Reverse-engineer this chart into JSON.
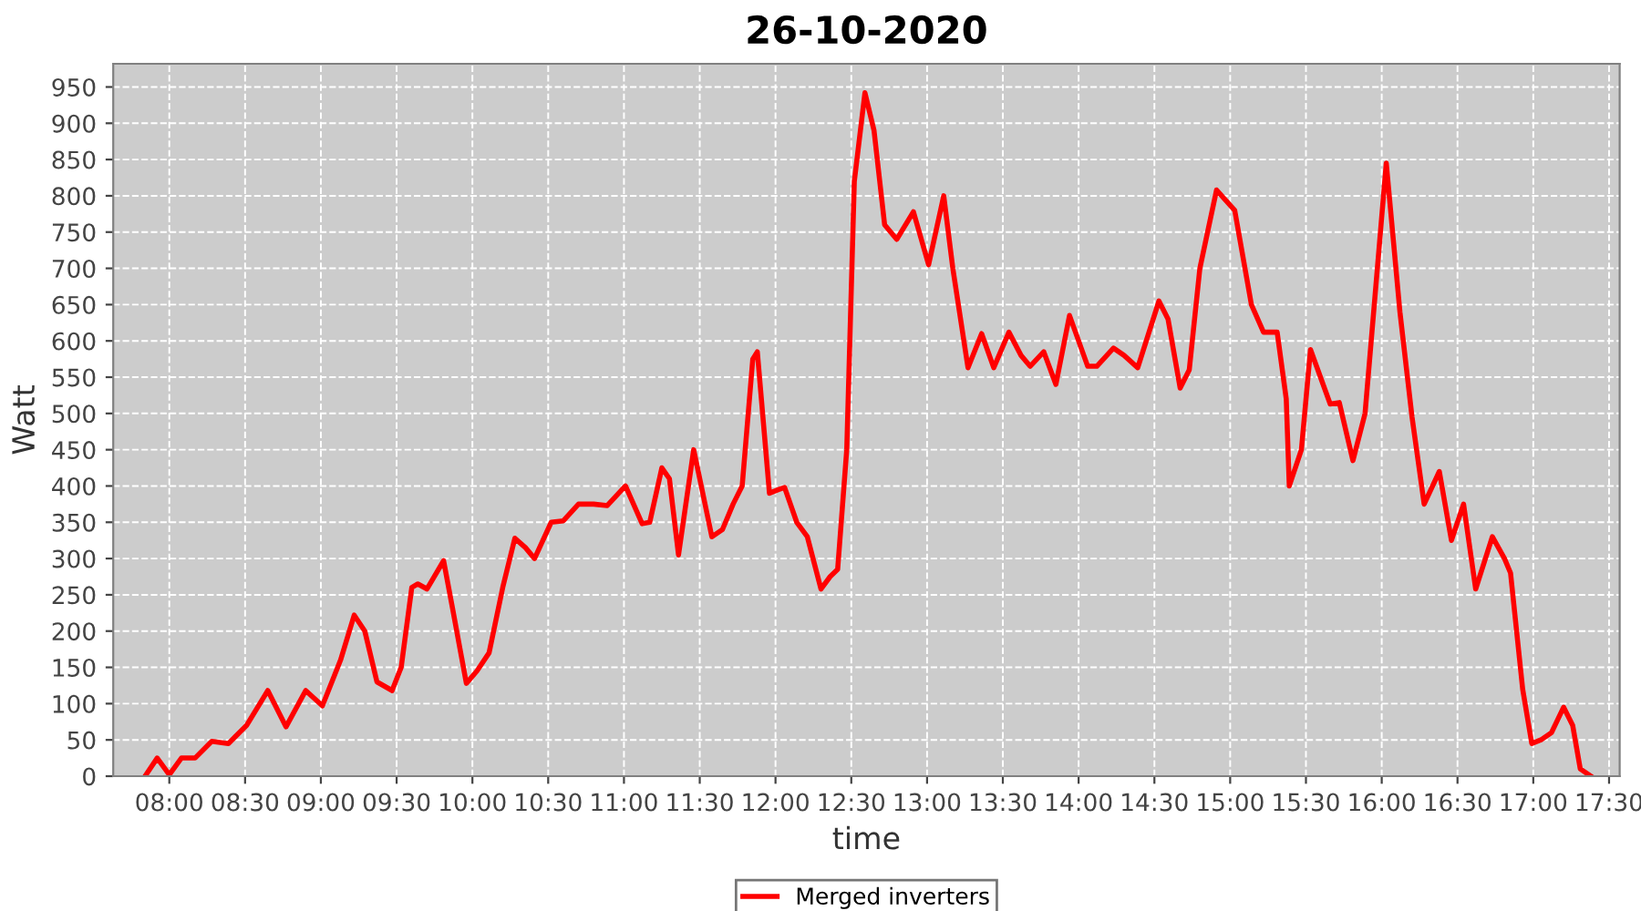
{
  "chart_data": {
    "type": "line",
    "title": "26-10-2020",
    "xlabel": "time",
    "ylabel": "Watt",
    "grid": true,
    "legend": "bottom",
    "marker": "none",
    "line_style": "solid",
    "xlim": [
      7.63,
      17.57
    ],
    "ylim": [
      0,
      982
    ],
    "xticks": [
      {
        "value": 8,
        "label": "08:00"
      },
      {
        "value": 8.5,
        "label": "08:30"
      },
      {
        "value": 9,
        "label": "09:00"
      },
      {
        "value": 9.5,
        "label": "09:30"
      },
      {
        "value": 10,
        "label": "10:00"
      },
      {
        "value": 10.5,
        "label": "10:30"
      },
      {
        "value": 11,
        "label": "11:00"
      },
      {
        "value": 11.5,
        "label": "11:30"
      },
      {
        "value": 12,
        "label": "12:00"
      },
      {
        "value": 12.5,
        "label": "12:30"
      },
      {
        "value": 13,
        "label": "13:00"
      },
      {
        "value": 13.5,
        "label": "13:30"
      },
      {
        "value": 14,
        "label": "14:00"
      },
      {
        "value": 14.5,
        "label": "14:30"
      },
      {
        "value": 15,
        "label": "15:00"
      },
      {
        "value": 15.5,
        "label": "15:30"
      },
      {
        "value": 16,
        "label": "16:00"
      },
      {
        "value": 16.5,
        "label": "16:30"
      },
      {
        "value": 17,
        "label": "17:00"
      },
      {
        "value": 17.5,
        "label": "17:30"
      }
    ],
    "yticks": [
      0,
      50,
      100,
      150,
      200,
      250,
      300,
      350,
      400,
      450,
      500,
      550,
      600,
      650,
      700,
      750,
      800,
      850,
      900,
      950
    ],
    "series": [
      {
        "name": "Merged inverters",
        "color": "#ff0000",
        "x": [
          7.84,
          7.92,
          8.0,
          8.08,
          8.17,
          8.28,
          8.39,
          8.51,
          8.65,
          8.77,
          8.9,
          9.01,
          9.13,
          9.22,
          9.29,
          9.37,
          9.47,
          9.53,
          9.6,
          9.64,
          9.7,
          9.81,
          9.87,
          9.96,
          10.03,
          10.11,
          10.2,
          10.28,
          10.35,
          10.41,
          10.52,
          10.6,
          10.7,
          10.8,
          10.89,
          11.01,
          11.12,
          11.17,
          11.25,
          11.3,
          11.36,
          11.46,
          11.58,
          11.65,
          11.72,
          11.78,
          11.85,
          11.88,
          11.96,
          12.02,
          12.06,
          12.14,
          12.21,
          12.3,
          12.36,
          12.41,
          12.47,
          12.52,
          12.59,
          12.65,
          12.72,
          12.8,
          12.91,
          13.01,
          13.11,
          13.17,
          13.27,
          13.36,
          13.44,
          13.54,
          13.62,
          13.68,
          13.77,
          13.85,
          13.94,
          14.06,
          14.12,
          14.23,
          14.3,
          14.39,
          14.53,
          14.59,
          14.67,
          14.73,
          14.8,
          14.91,
          15.03,
          15.14,
          15.22,
          15.31,
          15.37,
          15.39,
          15.47,
          15.53,
          15.66,
          15.72,
          15.81,
          15.89,
          16.03,
          16.12,
          16.2,
          16.28,
          16.38,
          16.46,
          16.54,
          16.62,
          16.73,
          16.81,
          16.85,
          16.93,
          16.99,
          17.05,
          17.12,
          17.2,
          17.26,
          17.31,
          17.38
        ],
        "values": [
          0,
          25,
          2,
          25,
          25,
          48,
          45,
          70,
          118,
          68,
          118,
          97,
          160,
          222,
          200,
          130,
          118,
          150,
          260,
          265,
          258,
          297,
          230,
          128,
          145,
          170,
          260,
          328,
          315,
          300,
          350,
          352,
          375,
          375,
          373,
          400,
          348,
          350,
          425,
          410,
          305,
          450,
          330,
          340,
          375,
          400,
          575,
          585,
          390,
          395,
          398,
          350,
          330,
          258,
          275,
          285,
          450,
          820,
          942,
          890,
          760,
          740,
          778,
          705,
          800,
          700,
          563,
          610,
          563,
          612,
          580,
          565,
          585,
          540,
          635,
          565,
          565,
          590,
          580,
          563,
          655,
          630,
          535,
          560,
          700,
          808,
          780,
          650,
          612,
          612,
          520,
          400,
          450,
          588,
          513,
          515,
          435,
          500,
          845,
          640,
          495,
          375,
          420,
          325,
          375,
          258,
          330,
          300,
          280,
          120,
          45,
          50,
          60,
          95,
          70,
          10,
          0
        ]
      }
    ]
  }
}
